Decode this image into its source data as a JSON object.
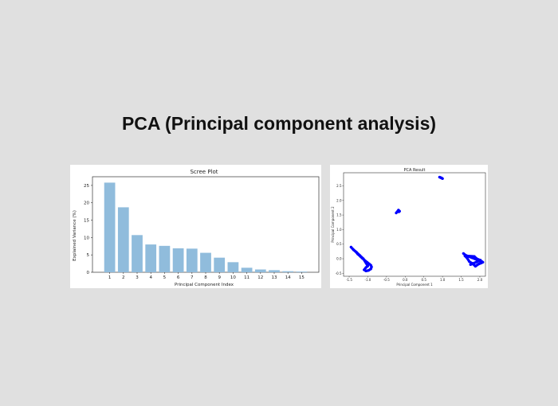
{
  "page": {
    "title": "PCA (Principal component analysis)"
  },
  "chart_data": [
    {
      "type": "bar",
      "title": "Scree Plot",
      "xlabel": "Principal Component Index",
      "ylabel": "Explained Variance (%)",
      "categories": [
        "1",
        "2",
        "3",
        "4",
        "5",
        "6",
        "7",
        "8",
        "9",
        "10",
        "11",
        "12",
        "13",
        "14",
        "15"
      ],
      "values": [
        25.8,
        18.7,
        10.7,
        8.0,
        7.6,
        6.9,
        6.8,
        5.6,
        4.2,
        2.9,
        1.3,
        0.8,
        0.6,
        0.3,
        0.2
      ],
      "yticks": [
        0,
        5,
        10,
        15,
        20,
        25
      ],
      "ylim": [
        0,
        27.5
      ],
      "bar_color": "#90bcdc",
      "grid": false
    },
    {
      "type": "scatter",
      "title": "PCA Result",
      "xlabel": "Principal Component 1",
      "ylabel": "Principal Component 2",
      "xticks": [
        "-1.5",
        "-1.0",
        "-0.5",
        "0.0",
        "0.5",
        "1.0",
        "1.5",
        "2.0"
      ],
      "yticks": [
        "-0.5",
        "0.0",
        "0.5",
        "1.0",
        "1.5",
        "2.0",
        "2.5"
      ],
      "xlim": [
        -1.65,
        2.15
      ],
      "ylim": [
        -0.6,
        2.95
      ],
      "point_color": "#0000ff",
      "grid": false,
      "clusters": [
        {
          "x": [
            0.92,
            0.96,
            0.99,
            1.0,
            0.94
          ],
          "y": [
            2.8,
            2.78,
            2.76,
            2.75,
            2.79
          ]
        },
        {
          "x": [
            -0.24,
            -0.18,
            -0.15,
            -0.17
          ],
          "y": [
            1.57,
            1.67,
            1.63,
            1.61
          ]
        },
        {
          "x": [
            -1.45,
            -1.4,
            -1.33,
            -1.27,
            -1.2,
            -1.15,
            -1.08,
            -1.02,
            -0.96,
            -0.92,
            -0.9,
            -0.92,
            -0.98,
            -1.05,
            -1.1,
            -1.05,
            -1.0,
            -1.12,
            -1.22,
            -1.3,
            -1.38
          ],
          "y": [
            0.4,
            0.33,
            0.25,
            0.16,
            0.08,
            0.02,
            -0.06,
            -0.12,
            -0.18,
            -0.22,
            -0.28,
            -0.35,
            -0.4,
            -0.42,
            -0.38,
            -0.3,
            -0.25,
            0.0,
            0.12,
            0.22,
            0.3
          ]
        },
        {
          "x": [
            1.56,
            1.62,
            1.7,
            1.78,
            1.86,
            1.93,
            2.0,
            2.06,
            2.08,
            2.03,
            1.97,
            1.92,
            1.88,
            1.8,
            1.72,
            1.66,
            1.6,
            1.85,
            1.9,
            1.95,
            2.02,
            1.75
          ],
          "y": [
            0.18,
            0.12,
            0.08,
            0.04,
            0.0,
            -0.04,
            -0.08,
            -0.1,
            -0.12,
            -0.15,
            -0.18,
            -0.22,
            -0.26,
            -0.16,
            -0.1,
            0.02,
            0.1,
            0.08,
            0.02,
            -0.02,
            -0.05,
            -0.2
          ]
        }
      ]
    }
  ]
}
